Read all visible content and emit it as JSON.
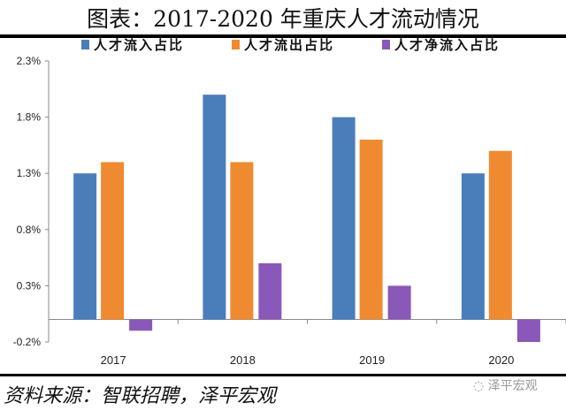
{
  "chart_data": {
    "type": "bar",
    "title": "图表：2017-2020 年重庆人才流动情况",
    "categories": [
      "2017",
      "2018",
      "2019",
      "2020"
    ],
    "series": [
      {
        "name": "人才流入占比",
        "values": [
          1.3,
          2.0,
          1.8,
          1.3
        ],
        "color": "#4a7ebb"
      },
      {
        "name": "人才流出占比",
        "values": [
          1.4,
          1.4,
          1.6,
          1.5
        ],
        "color": "#f08a30"
      },
      {
        "name": "人才净流入占比",
        "values": [
          -0.1,
          0.5,
          0.3,
          -0.2
        ],
        "color": "#8a58b8"
      }
    ],
    "yticks": [
      "-0.2%",
      "0.3%",
      "0.8%",
      "1.3%",
      "1.8%",
      "2.3%"
    ],
    "ytick_values": [
      -0.2,
      0.3,
      0.8,
      1.3,
      1.8,
      2.3
    ],
    "ylim": [
      -0.2,
      2.3
    ],
    "unit": "%",
    "legend_position": "top",
    "grid": false
  },
  "source": "资料来源：智联招聘，泽平宏观",
  "watermark": "泽平宏观"
}
